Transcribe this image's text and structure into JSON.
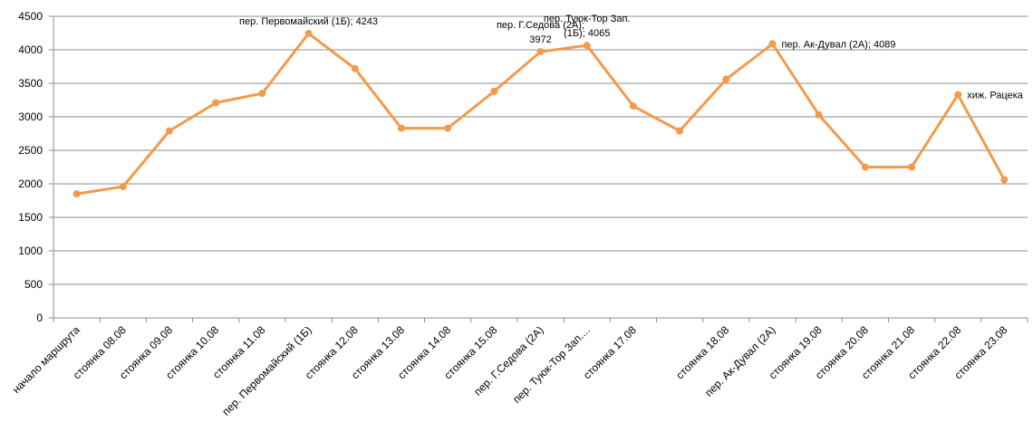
{
  "chart_data": {
    "type": "line",
    "title": "",
    "xlabel": "",
    "ylabel": "",
    "ylim": [
      0,
      4500
    ],
    "y_ticks": [
      0,
      500,
      1000,
      1500,
      2000,
      2500,
      3000,
      3500,
      4000,
      4500
    ],
    "grid": true,
    "legend": "none",
    "colors": {
      "line": "#F39A4C",
      "grid": "#8C8C8C",
      "axis": "#8C8C8C"
    },
    "categories": [
      "начало маршрута",
      "стоянка 08.08",
      "стоянка 09.08",
      "стоянка 10.08",
      "стоянка 11.08",
      "пер. Первомайский (1Б)",
      "стоянка 12.08",
      "стоянка 13.08",
      "стоянка 14.08",
      "стоянка 15.08",
      "пер. Г.Седова (2А)",
      "пер. Туюк-Тор Зап....",
      "стоянка 17.08",
      "",
      "стоянка 18.08",
      "пер. Ак-Дувал (2А)",
      "стоянка 19.08",
      "стоянка 20.08",
      "стоянка 21.08",
      "стоянка 22.08",
      "стоянка 23.08"
    ],
    "values": [
      1850,
      1960,
      2790,
      3210,
      3350,
      4243,
      3720,
      2830,
      2830,
      3380,
      3972,
      4065,
      3160,
      2790,
      3560,
      4089,
      3030,
      2250,
      2250,
      3330,
      2060
    ],
    "annotations": [
      {
        "index": 5,
        "lines": [
          "пер. Первомайский (1Б); 4243"
        ],
        "anchor": "middle"
      },
      {
        "index": 10,
        "lines": [
          "пер. Г.Седова (2А);",
          "3972"
        ],
        "anchor": "middle"
      },
      {
        "index": 11,
        "lines": [
          "пер. Туюк-Тор Зап.",
          "(1Б); 4065"
        ],
        "anchor": "middle"
      },
      {
        "index": 15,
        "lines": [
          "пер. Ак-Дувал (2А); 4089"
        ],
        "anchor": "start"
      },
      {
        "index": 19,
        "lines": [
          "хиж. Рацека"
        ],
        "anchor": "start"
      }
    ]
  }
}
